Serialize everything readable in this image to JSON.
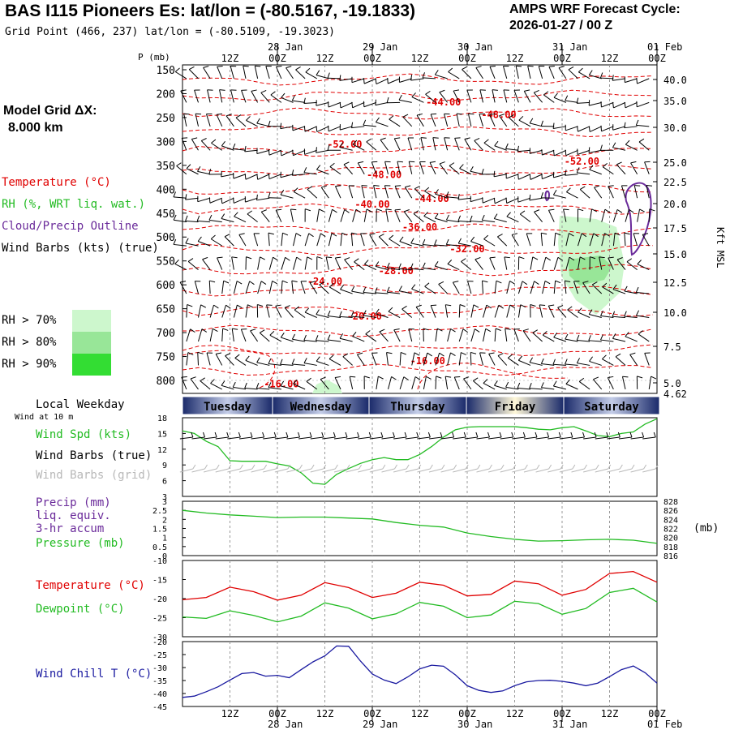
{
  "header": {
    "title": "BAS I115 Pioneers Es:  lat/lon = (-80.5167, -19.1833)",
    "grid_point": "Grid Point (466, 237) lat/lon = (-80.5109, -19.3023)",
    "cycle_line1": "AMPS WRF Forecast Cycle:",
    "cycle_line2": "2026-01-27 / 00  Z"
  },
  "model_grid": {
    "line1": "Model Grid ΔX:",
    "line2": "8.000 km"
  },
  "legend": {
    "temperature": "Temperature (°C)",
    "rh": "RH (%, WRT liq. wat.)",
    "cloud": "Cloud/Precip Outline",
    "wind_barbs": "Wind Barbs (kts) (true)",
    "rh70": "RH > 70%",
    "rh80": "RH > 80%",
    "rh90": "RH > 90%"
  },
  "colors": {
    "temperature": "#e00000",
    "rh": "#22bb22",
    "cloud": "#6a2a9a",
    "pressure": "#22bb22",
    "dewpoint": "#22bb22",
    "windchill": "#1a1aa0",
    "grid": "#999999",
    "rh70": "#cdf7cd",
    "rh80": "#98e698",
    "rh90": "#33dd33",
    "grid_barbs": "#b8b8b8"
  },
  "weekday": {
    "label": "Local Weekday",
    "days": [
      "Tuesday",
      "Wednesday",
      "Thursday",
      "Friday",
      "Saturday"
    ]
  },
  "time_axis": {
    "hour_labels": [
      "12Z",
      "00Z",
      "12Z",
      "00Z",
      "12Z",
      "00Z",
      "12Z",
      "00Z",
      "12Z",
      "00Z"
    ],
    "date_labels": [
      "28 Jan",
      "29 Jan",
      "30 Jan",
      "31 Jan",
      "01 Feb"
    ],
    "range_hours": [
      0,
      120
    ]
  },
  "chart_data": [
    {
      "type": "line",
      "title": "Vertical cross-section",
      "ylabel": "P (mb)",
      "y2label": "Kft MSL",
      "y_ticks": [
        "150",
        "200",
        "250",
        "300",
        "350",
        "400",
        "450",
        "500",
        "550",
        "600",
        "650",
        "700",
        "750",
        "800"
      ],
      "y2_ticks": [
        "40.0",
        "35.0",
        "30.0",
        "25.0",
        "22.5",
        "20.0",
        "17.5",
        "15.0",
        "12.5",
        "10.0",
        "7.5",
        "5.0",
        "4.62"
      ],
      "y2_values": [
        40.0,
        35.0,
        30.0,
        25.0,
        22.5,
        20.0,
        17.5,
        15.0,
        12.5,
        10.0,
        7.5,
        5.0,
        4.62
      ],
      "temperature_labels": [
        {
          "text": "-44.00",
          "t": 66,
          "p": 218
        },
        {
          "text": "-48.00",
          "t": 80,
          "p": 244
        },
        {
          "text": "-52.00",
          "t": 41,
          "p": 306
        },
        {
          "text": "-52.00",
          "t": 101,
          "p": 342
        },
        {
          "text": "-48.00",
          "t": 51,
          "p": 370
        },
        {
          "text": "-44.00",
          "t": 63,
          "p": 420
        },
        {
          "text": "-40.00",
          "t": 48,
          "p": 432
        },
        {
          "text": "-36.00",
          "t": 60,
          "p": 479
        },
        {
          "text": "-32.00",
          "t": 72,
          "p": 525
        },
        {
          "text": "-28.00",
          "t": 54,
          "p": 571
        },
        {
          "text": "-24.00",
          "t": 36,
          "p": 593
        },
        {
          "text": "-20.00",
          "t": 46,
          "p": 666
        },
        {
          "text": "-16.00",
          "t": 62,
          "p": 759
        },
        {
          "text": "-16.00",
          "t": 25,
          "p": 808
        }
      ]
    },
    {
      "type": "line",
      "title": "Wind speed at 10 m",
      "label_top": "Wind at 10 m",
      "series_labels": [
        "Wind Spd (kts)",
        "Wind Barbs (true)",
        "Wind Barbs (grid)"
      ],
      "ylim": [
        3,
        18
      ],
      "y_ticks": [
        3,
        6,
        9,
        12,
        15,
        18
      ],
      "x": [
        0,
        3,
        6,
        9,
        12,
        15,
        18,
        21,
        24,
        27,
        30,
        33,
        36,
        39,
        42,
        45,
        48,
        51,
        54,
        57,
        60,
        63,
        66,
        69,
        72,
        75,
        78,
        81,
        84,
        87,
        90,
        93,
        96,
        99,
        102,
        105,
        108,
        111,
        114,
        117,
        120
      ],
      "series": [
        {
          "name": "Wind Spd (kts)",
          "values": [
            15.5,
            15.0,
            13.5,
            12.5,
            9.8,
            9.7,
            9.7,
            9.7,
            9.2,
            8.8,
            7.5,
            5.5,
            5.3,
            7.2,
            8.3,
            9.3,
            10.0,
            10.4,
            10.0,
            10.0,
            11.0,
            12.5,
            14.3,
            15.7,
            16.2,
            16.3,
            16.3,
            16.3,
            16.3,
            16.1,
            15.8,
            15.7,
            16.1,
            16.3,
            15.5,
            14.6,
            14.4,
            15.0,
            15.3,
            16.8,
            17.8
          ]
        }
      ]
    },
    {
      "type": "line",
      "title": "Precip and pressure",
      "series_labels": [
        "Precip (mm)",
        "liq. equiv.",
        "3-hr accum",
        "Pressure (mb)"
      ],
      "ylim": [
        0,
        3
      ],
      "y_ticks": [
        "0",
        "0.5",
        "1",
        "1.5",
        "2",
        "2.5",
        "3"
      ],
      "y2lim": [
        816,
        828
      ],
      "y2_ticks": [
        "816",
        "818",
        "820",
        "822",
        "824",
        "826",
        "828"
      ],
      "y2label": "(mb)",
      "x": [
        0,
        6,
        12,
        18,
        24,
        30,
        36,
        42,
        48,
        54,
        60,
        66,
        72,
        78,
        84,
        90,
        96,
        102,
        108,
        114,
        120
      ],
      "series": [
        {
          "name": "Pressure (mb)",
          "axis": "y2",
          "values": [
            826.0,
            825.4,
            825.0,
            824.7,
            824.4,
            824.5,
            824.5,
            824.3,
            824.1,
            823.3,
            822.7,
            822.3,
            821.0,
            820.2,
            819.6,
            819.2,
            819.3,
            819.5,
            819.6,
            819.4,
            818.7
          ]
        },
        {
          "name": "Precip (mm)",
          "axis": "y",
          "values": [
            0,
            0,
            0,
            0,
            0,
            0,
            0,
            0,
            0,
            0,
            0,
            0,
            0,
            0,
            0,
            0,
            0,
            0,
            0,
            0,
            0
          ]
        }
      ]
    },
    {
      "type": "line",
      "title": "Temperature and dewpoint",
      "series_labels": [
        "Temperature (°C)",
        "Dewpoint (°C)"
      ],
      "ylim": [
        -30,
        -10
      ],
      "y_ticks": [
        -10,
        -15,
        -20,
        -25,
        -30
      ],
      "x": [
        0,
        6,
        12,
        18,
        24,
        30,
        36,
        42,
        48,
        54,
        60,
        66,
        72,
        78,
        84,
        90,
        96,
        102,
        108,
        114,
        120
      ],
      "series": [
        {
          "name": "Temperature (°C)",
          "values": [
            -20.3,
            -19.7,
            -17.0,
            -18.2,
            -20.4,
            -19.1,
            -15.8,
            -17.1,
            -19.7,
            -18.6,
            -15.7,
            -16.5,
            -19.3,
            -18.9,
            -15.4,
            -16.1,
            -19.1,
            -17.6,
            -13.4,
            -12.9,
            -15.7
          ]
        },
        {
          "name": "Dewpoint (°C)",
          "values": [
            -24.8,
            -25.2,
            -23.2,
            -24.4,
            -26.1,
            -24.6,
            -21.1,
            -22.5,
            -25.3,
            -24.0,
            -21.0,
            -22.0,
            -25.0,
            -24.3,
            -20.7,
            -21.3,
            -24.1,
            -22.6,
            -18.4,
            -17.3,
            -20.9
          ]
        }
      ]
    },
    {
      "type": "line",
      "title": "Wind chill",
      "series_labels": [
        "Wind Chill T (°C)"
      ],
      "ylim": [
        -45,
        -20
      ],
      "y_ticks": [
        -20,
        -25,
        -30,
        -35,
        -40,
        -45
      ],
      "x": [
        0,
        3,
        6,
        9,
        12,
        15,
        18,
        21,
        24,
        27,
        30,
        33,
        36,
        39,
        42,
        45,
        48,
        51,
        54,
        57,
        60,
        63,
        66,
        69,
        72,
        75,
        78,
        81,
        84,
        87,
        90,
        93,
        96,
        99,
        102,
        105,
        108,
        111,
        114,
        117,
        120
      ],
      "series": [
        {
          "name": "Wind Chill T (°C)",
          "values": [
            -41.5,
            -41.0,
            -39.3,
            -37.4,
            -34.8,
            -32.3,
            -31.9,
            -33.3,
            -33.0,
            -33.9,
            -30.8,
            -27.8,
            -25.5,
            -21.7,
            -21.8,
            -27.5,
            -32.5,
            -34.8,
            -36.2,
            -33.6,
            -30.5,
            -29.1,
            -29.5,
            -32.8,
            -37.0,
            -38.8,
            -39.6,
            -39.0,
            -37.0,
            -35.5,
            -35.0,
            -34.9,
            -35.3,
            -36.0,
            -37.0,
            -36.0,
            -33.5,
            -30.8,
            -29.4,
            -32.0,
            -36.0
          ]
        }
      ]
    }
  ]
}
